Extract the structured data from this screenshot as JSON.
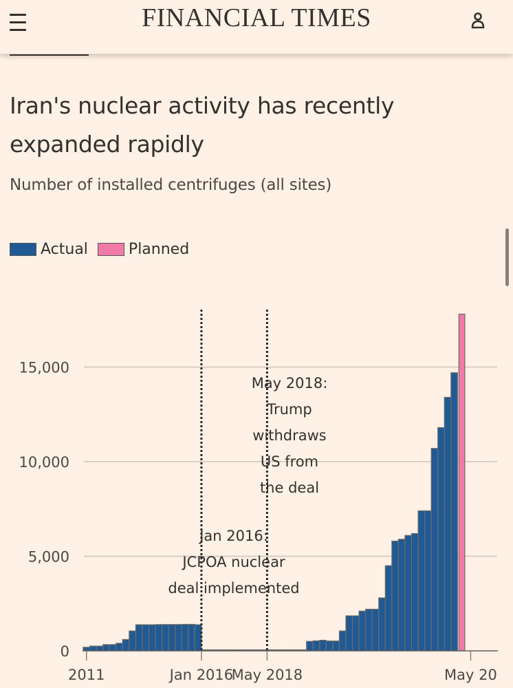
{
  "header": {
    "masthead": "FINANCIAL TIMES",
    "menu_icon": "hamburger-menu-icon",
    "account_icon": "user-icon"
  },
  "article": {
    "title_line1": "Iran's nuclear activity has recently",
    "title_line2": "expanded rapidly",
    "subtitle": "Number of installed centrifuges (all sites)"
  },
  "colors": {
    "background": "#fff1e5",
    "actual": "#1f5a95",
    "planned": "#f27aa8",
    "gridline": "#cec4bb",
    "text": "#33302e"
  },
  "chart_data": {
    "type": "bar",
    "title": "Iran's nuclear activity has recently expanded rapidly",
    "subtitle": "Number of installed centrifuges (all sites)",
    "xlabel": "",
    "ylabel": "",
    "ylim": [
      0,
      18000
    ],
    "yticks": [
      0,
      5000,
      10000,
      15000
    ],
    "ytick_labels": [
      "0",
      "5,000",
      "10,000",
      "15,000"
    ],
    "xtick_labels": [
      "2011",
      "Jan 2016",
      "May 2018",
      "May 20"
    ],
    "xtick_indices": [
      1,
      18,
      28,
      59
    ],
    "grid": true,
    "legend": {
      "position": "top-left",
      "entries": [
        {
          "label": "Actual",
          "color": "#1f5a95"
        },
        {
          "label": "Planned",
          "color": "#f27aa8"
        }
      ]
    },
    "annotations": [
      {
        "at_index": 18,
        "lines": [
          "Jan 2016:",
          "JCPOA nuclear",
          "deal implemented"
        ]
      },
      {
        "at_index": 28,
        "lines": [
          "May 2018:",
          "Trump",
          "withdraws",
          "US from",
          "the deal"
        ]
      }
    ],
    "series": [
      {
        "name": "Actual",
        "values": [
          190,
          250,
          250,
          330,
          330,
          400,
          600,
          1050,
          1380,
          1380,
          1380,
          1390,
          1390,
          1390,
          1390,
          1400,
          1400,
          1380,
          30,
          30,
          30,
          40,
          40,
          40,
          40,
          40,
          40,
          40,
          40,
          40,
          40,
          40,
          40,
          40,
          500,
          530,
          560,
          520,
          520,
          1050,
          1850,
          1850,
          2100,
          2200,
          2200,
          2800,
          4500,
          5800,
          5900,
          6100,
          6200,
          7400,
          7400,
          10700,
          11800,
          13400,
          14700
        ]
      },
      {
        "name": "Planned",
        "values_at_end": [
          17800
        ]
      }
    ]
  }
}
